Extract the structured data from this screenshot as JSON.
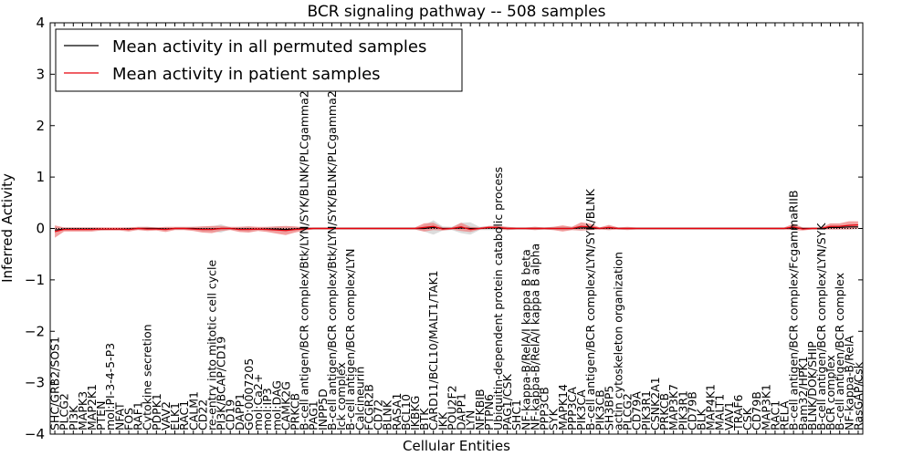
{
  "chart_data": {
    "type": "line",
    "title": "BCR signaling pathway -- 508 samples",
    "xlabel": "Cellular Entities",
    "ylabel": "Inferred Activity",
    "ylim": [
      -4,
      4
    ],
    "yticks": [
      "4",
      "3",
      "2",
      "1",
      "0",
      "−1",
      "−2",
      "−3",
      "−4"
    ],
    "ytick_values": [
      4,
      3,
      2,
      1,
      0,
      -1,
      -2,
      -3,
      -4
    ],
    "legend": {
      "placement": "top-left",
      "entries": [
        {
          "name": "Mean activity in all permuted samples",
          "color": "#000000"
        },
        {
          "name": "Mean activity in patient samples",
          "color": "#e8000b"
        }
      ]
    },
    "categories": [
      "SHC/GRB2/SOS1",
      "PLCG2",
      "PI3K",
      "MAPK3",
      "MAP2K1",
      "PTEN",
      "mol:PI-3-4-5-P3",
      "NFAT",
      "FOS",
      "RAF1",
      "Cytokine secretion",
      "PDPK1",
      "VAV2",
      "ELK1",
      "RAC1",
      "CALM1",
      "CD22",
      "re-entry into mitotic cell cycle",
      "PI3K/BCAP/CD19",
      "CD19",
      "DAPP1",
      "GO:0007205",
      "mol:Ca2+",
      "mol:IP3",
      "mol:DAG",
      "CAMK2G",
      "PRKCB",
      "B-cell antigen/BCR complex/Btk/LYN/SYK/BLNK/PLCgamma2",
      "PAG1",
      "INPP5D",
      "B-cell antigen/BCR complex/Btk/LYN/SYK/BLNK/PLCgamma2",
      "Ick complex",
      "B-cell antigen/BCR complex/LYN",
      "Calcineurin",
      "FCGR2B",
      "CD72",
      "BLNK",
      "RASA1",
      "BCL10",
      "IKBKG",
      "BTK",
      "CARD11/BCL10/MALT1/TAK1",
      "IKK",
      "POU2F2",
      "DAPP1",
      "LYN",
      "NFKBIB",
      "PTPN6",
      "Ubiquitin-dependent protein catabolic process",
      "PAG1/CSK",
      "SHC1",
      "NF-kappa-B/RelA/I kappa B beta",
      "NF-kappa-B/RelA/I kappa B alpha",
      "PPP3CB",
      "SYK",
      "MAPK14",
      "PPP3CA",
      "PIK3CA",
      "B-cell antigen/BCR complex/LYN/SYK/BLNK",
      "PIK3CB",
      "SH3BP5",
      "actin cytoskeleton organization",
      "PLCG2",
      "CD79A",
      "PIK3R1",
      "CSNK2A1",
      "PRKCB",
      "MAP3K7",
      "PIK3R1",
      "CD79B",
      "BLK",
      "MAP4K1",
      "MALT1",
      "VAV1",
      "TRAF6",
      "CSK",
      "CD79B",
      "MAP3K1",
      "RAC1",
      "RELA",
      "B-cell antigen/BCR complex/FcgammaRIIB",
      "Bam32/HPK1",
      "BLNK/DOK/SHIP",
      "B-cell antigen/BCR complex/LYN/SYK",
      "BCR complex",
      "B-cell antigen/BCR complex",
      "NF-kappa-B/RelA",
      "RasGAP/Csk"
    ],
    "series": [
      {
        "name": "Mean activity in patient samples",
        "values": [
          -0.06,
          -0.02,
          -0.02,
          -0.02,
          -0.02,
          -0.01,
          -0.01,
          -0.01,
          -0.02,
          0.0,
          -0.01,
          -0.01,
          -0.02,
          0.0,
          0.0,
          -0.01,
          -0.02,
          -0.02,
          0.0,
          0.0,
          -0.02,
          -0.02,
          -0.01,
          -0.02,
          -0.03,
          -0.04,
          -0.02,
          -0.01,
          0.0,
          0.0,
          0.0,
          0.0,
          0.0,
          0.0,
          0.0,
          0.0,
          0.0,
          0.0,
          0.0,
          0.0,
          0.02,
          0.04,
          -0.01,
          0.0,
          0.03,
          -0.02,
          0.0,
          0.02,
          0.02,
          0.0,
          0.0,
          0.0,
          0.0,
          0.0,
          0.0,
          0.0,
          0.0,
          0.04,
          0.03,
          0.0,
          0.02,
          0.0,
          0.0,
          0.0,
          0.0,
          0.0,
          0.0,
          0.0,
          0.0,
          0.0,
          0.0,
          0.0,
          0.0,
          0.0,
          0.0,
          0.0,
          0.0,
          0.0,
          0.0,
          0.0,
          0.03,
          -0.01,
          0.0,
          0.0,
          0.04,
          0.04,
          0.06,
          0.07
        ]
      },
      {
        "name": "Mean activity in all permuted samples",
        "values": [
          -0.03,
          -0.01,
          -0.01,
          -0.01,
          -0.01,
          -0.01,
          -0.01,
          -0.01,
          -0.01,
          0.0,
          0.0,
          0.0,
          -0.01,
          0.0,
          0.0,
          0.0,
          -0.01,
          -0.01,
          0.0,
          0.0,
          -0.01,
          -0.01,
          -0.01,
          -0.01,
          -0.01,
          -0.02,
          -0.01,
          0.0,
          0.0,
          0.0,
          0.0,
          0.0,
          0.0,
          0.0,
          0.0,
          0.0,
          0.0,
          0.0,
          0.0,
          0.0,
          0.0,
          0.02,
          0.0,
          0.0,
          0.01,
          0.0,
          0.0,
          0.01,
          0.01,
          0.0,
          0.0,
          0.0,
          0.0,
          0.0,
          0.0,
          0.0,
          0.0,
          0.01,
          0.01,
          0.0,
          0.01,
          0.0,
          0.0,
          0.0,
          0.0,
          0.0,
          0.0,
          0.0,
          0.0,
          0.0,
          0.0,
          0.0,
          0.0,
          0.0,
          0.0,
          0.0,
          0.0,
          0.0,
          0.0,
          0.0,
          0.01,
          0.0,
          0.0,
          0.0,
          0.02,
          0.02,
          0.03,
          0.03
        ]
      }
    ],
    "band_halfwidth": {
      "patient": [
        0.12,
        0.04,
        0.04,
        0.04,
        0.04,
        0.03,
        0.03,
        0.03,
        0.04,
        0.03,
        0.04,
        0.03,
        0.05,
        0.03,
        0.03,
        0.04,
        0.06,
        0.07,
        0.05,
        0.03,
        0.05,
        0.06,
        0.04,
        0.05,
        0.07,
        0.09,
        0.06,
        0.03,
        0.02,
        0.02,
        0.02,
        0.02,
        0.02,
        0.02,
        0.02,
        0.02,
        0.02,
        0.02,
        0.02,
        0.02,
        0.08,
        0.07,
        0.03,
        0.02,
        0.08,
        0.05,
        0.02,
        0.03,
        0.03,
        0.03,
        0.02,
        0.02,
        0.03,
        0.02,
        0.03,
        0.06,
        0.03,
        0.08,
        0.06,
        0.02,
        0.05,
        0.02,
        0.03,
        0.02,
        0.02,
        0.02,
        0.02,
        0.02,
        0.02,
        0.02,
        0.02,
        0.02,
        0.02,
        0.02,
        0.02,
        0.02,
        0.02,
        0.02,
        0.02,
        0.02,
        0.06,
        0.03,
        0.02,
        0.02,
        0.06,
        0.06,
        0.08,
        0.07
      ],
      "permuted": [
        0.06,
        0.03,
        0.03,
        0.03,
        0.03,
        0.03,
        0.02,
        0.02,
        0.03,
        0.02,
        0.03,
        0.02,
        0.03,
        0.02,
        0.02,
        0.03,
        0.05,
        0.05,
        0.08,
        0.02,
        0.04,
        0.05,
        0.03,
        0.04,
        0.05,
        0.06,
        0.04,
        0.02,
        0.02,
        0.02,
        0.02,
        0.02,
        0.02,
        0.02,
        0.02,
        0.02,
        0.02,
        0.02,
        0.02,
        0.02,
        0.06,
        0.14,
        0.04,
        0.03,
        0.1,
        0.12,
        0.03,
        0.04,
        0.04,
        0.03,
        0.02,
        0.02,
        0.03,
        0.02,
        0.03,
        0.04,
        0.03,
        0.05,
        0.04,
        0.02,
        0.04,
        0.02,
        0.02,
        0.02,
        0.02,
        0.02,
        0.02,
        0.02,
        0.02,
        0.02,
        0.02,
        0.02,
        0.02,
        0.02,
        0.02,
        0.02,
        0.02,
        0.02,
        0.02,
        0.02,
        0.04,
        0.02,
        0.02,
        0.02,
        0.04,
        0.04,
        0.05,
        0.05
      ]
    }
  }
}
